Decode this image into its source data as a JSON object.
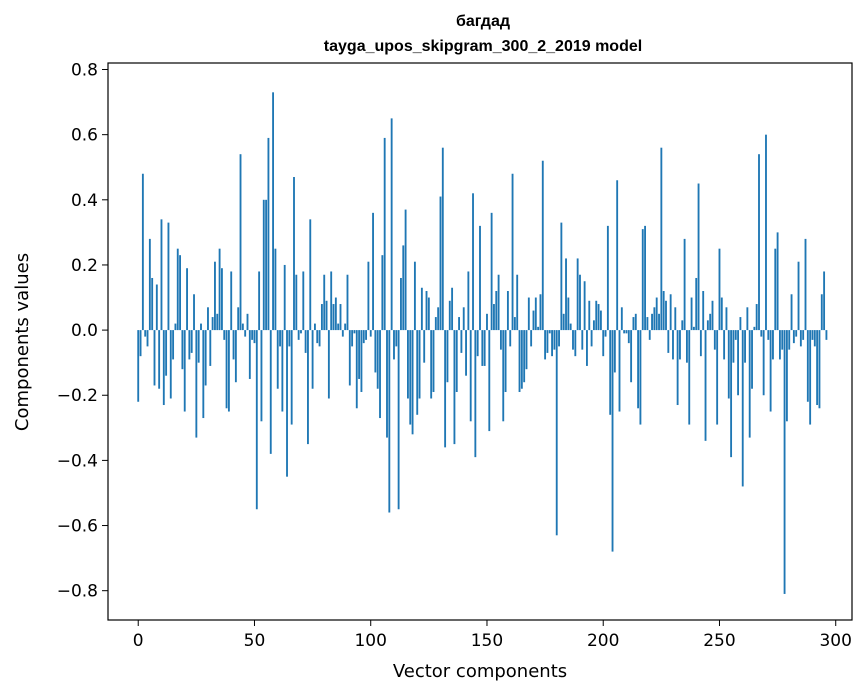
{
  "chart_data": {
    "type": "bar",
    "title": "багдад",
    "subtitle": "tayga_upos_skipgram_300_2_2019 model",
    "xlabel": "Vector components",
    "ylabel": "Components values",
    "bar_color": "#1f77b4",
    "grid": false,
    "xlim": [
      -13,
      307
    ],
    "ylim": [
      -0.89,
      0.82
    ],
    "xticks": [
      0,
      50,
      100,
      150,
      200,
      250,
      300
    ],
    "xtick_labels": [
      "0",
      "50",
      "100",
      "150",
      "200",
      "250",
      "300"
    ],
    "yticks": [
      -0.8,
      -0.6,
      -0.4,
      -0.2,
      0.0,
      0.2,
      0.4,
      0.6,
      0.8
    ],
    "ytick_labels": [
      "−0.8",
      "−0.6",
      "−0.4",
      "−0.2",
      "0.0",
      "0.2",
      "0.4",
      "0.6",
      "0.8"
    ],
    "values": [
      -0.22,
      -0.08,
      0.48,
      -0.02,
      -0.05,
      0.28,
      0.16,
      -0.17,
      0.14,
      -0.18,
      0.34,
      -0.23,
      -0.14,
      0.33,
      -0.21,
      -0.09,
      0.02,
      0.25,
      0.23,
      -0.12,
      -0.25,
      0.19,
      -0.09,
      -0.07,
      0.11,
      -0.33,
      -0.1,
      0.02,
      -0.27,
      -0.17,
      0.07,
      -0.11,
      0.04,
      0.21,
      0.05,
      0.25,
      0.19,
      -0.03,
      -0.24,
      -0.25,
      0.18,
      -0.09,
      -0.16,
      0.07,
      0.54,
      0.02,
      -0.02,
      0.05,
      -0.15,
      -0.03,
      -0.04,
      -0.55,
      0.18,
      -0.28,
      0.4,
      0.4,
      0.59,
      -0.38,
      0.73,
      0.25,
      -0.18,
      -0.05,
      -0.25,
      0.2,
      -0.45,
      -0.05,
      -0.29,
      0.47,
      0.17,
      -0.03,
      -0.01,
      0.18,
      -0.07,
      -0.35,
      0.34,
      -0.18,
      0.02,
      -0.04,
      -0.05,
      0.08,
      0.17,
      0.09,
      -0.21,
      0.18,
      0.08,
      0.1,
      0.02,
      0.08,
      -0.02,
      0.02,
      0.17,
      -0.17,
      -0.05,
      -0.01,
      -0.24,
      -0.15,
      -0.19,
      -0.04,
      -0.03,
      0.21,
      -0.02,
      0.36,
      -0.13,
      -0.18,
      -0.27,
      0.23,
      0.59,
      -0.33,
      -0.56,
      0.65,
      -0.09,
      -0.05,
      -0.55,
      0.16,
      0.26,
      0.37,
      -0.21,
      -0.29,
      -0.32,
      0.21,
      -0.26,
      -0.21,
      0.13,
      -0.1,
      0.12,
      0.1,
      -0.21,
      -0.19,
      0.04,
      0.07,
      0.41,
      0.56,
      -0.36,
      -0.16,
      0.09,
      0.13,
      -0.35,
      -0.19,
      0.04,
      -0.07,
      0.07,
      -0.14,
      0.18,
      -0.28,
      0.42,
      -0.39,
      -0.08,
      0.32,
      -0.11,
      -0.11,
      0.05,
      -0.31,
      0.36,
      0.08,
      0.12,
      0.17,
      -0.06,
      -0.28,
      -0.19,
      0.12,
      -0.05,
      0.48,
      0.04,
      0.17,
      -0.19,
      -0.18,
      -0.16,
      -0.12,
      0.1,
      -0.05,
      0.06,
      0.1,
      0.01,
      0.11,
      0.52,
      -0.09,
      -0.07,
      -0.01,
      -0.08,
      -0.06,
      -0.63,
      -0.05,
      0.33,
      0.05,
      0.22,
      0.1,
      0.02,
      -0.06,
      -0.08,
      0.22,
      0.17,
      -0.06,
      0.15,
      -0.11,
      0.09,
      -0.05,
      0.03,
      0.09,
      0.08,
      0.06,
      -0.08,
      -0.02,
      0.32,
      -0.26,
      -0.68,
      -0.13,
      0.46,
      -0.25,
      0.07,
      -0.01,
      -0.01,
      -0.04,
      -0.16,
      0.04,
      0.05,
      -0.24,
      -0.29,
      0.31,
      0.32,
      0.04,
      -0.03,
      0.05,
      0.07,
      0.1,
      0.05,
      0.56,
      0.12,
      0.09,
      -0.07,
      0.11,
      -0.09,
      0.07,
      -0.23,
      -0.09,
      0.03,
      0.28,
      -0.1,
      -0.29,
      0.1,
      0.01,
      0.16,
      0.45,
      -0.08,
      0.12,
      -0.34,
      0.03,
      0.05,
      0.09,
      -0.06,
      -0.29,
      0.25,
      0.1,
      -0.09,
      0.07,
      -0.21,
      -0.39,
      -0.1,
      -0.03,
      -0.2,
      0.04,
      -0.48,
      -0.1,
      0.07,
      -0.33,
      -0.18,
      0.01,
      0.08,
      0.54,
      -0.02,
      -0.2,
      0.6,
      -0.03,
      -0.25,
      -0.09,
      0.25,
      0.3,
      -0.09,
      -0.06,
      -0.81,
      -0.28,
      -0.06,
      0.11,
      -0.04,
      -0.02,
      0.21,
      -0.05,
      -0.03,
      0.28,
      -0.22,
      -0.29,
      -0.03,
      -0.05,
      -0.23,
      -0.24,
      0.11,
      0.18,
      -0.03
    ]
  }
}
